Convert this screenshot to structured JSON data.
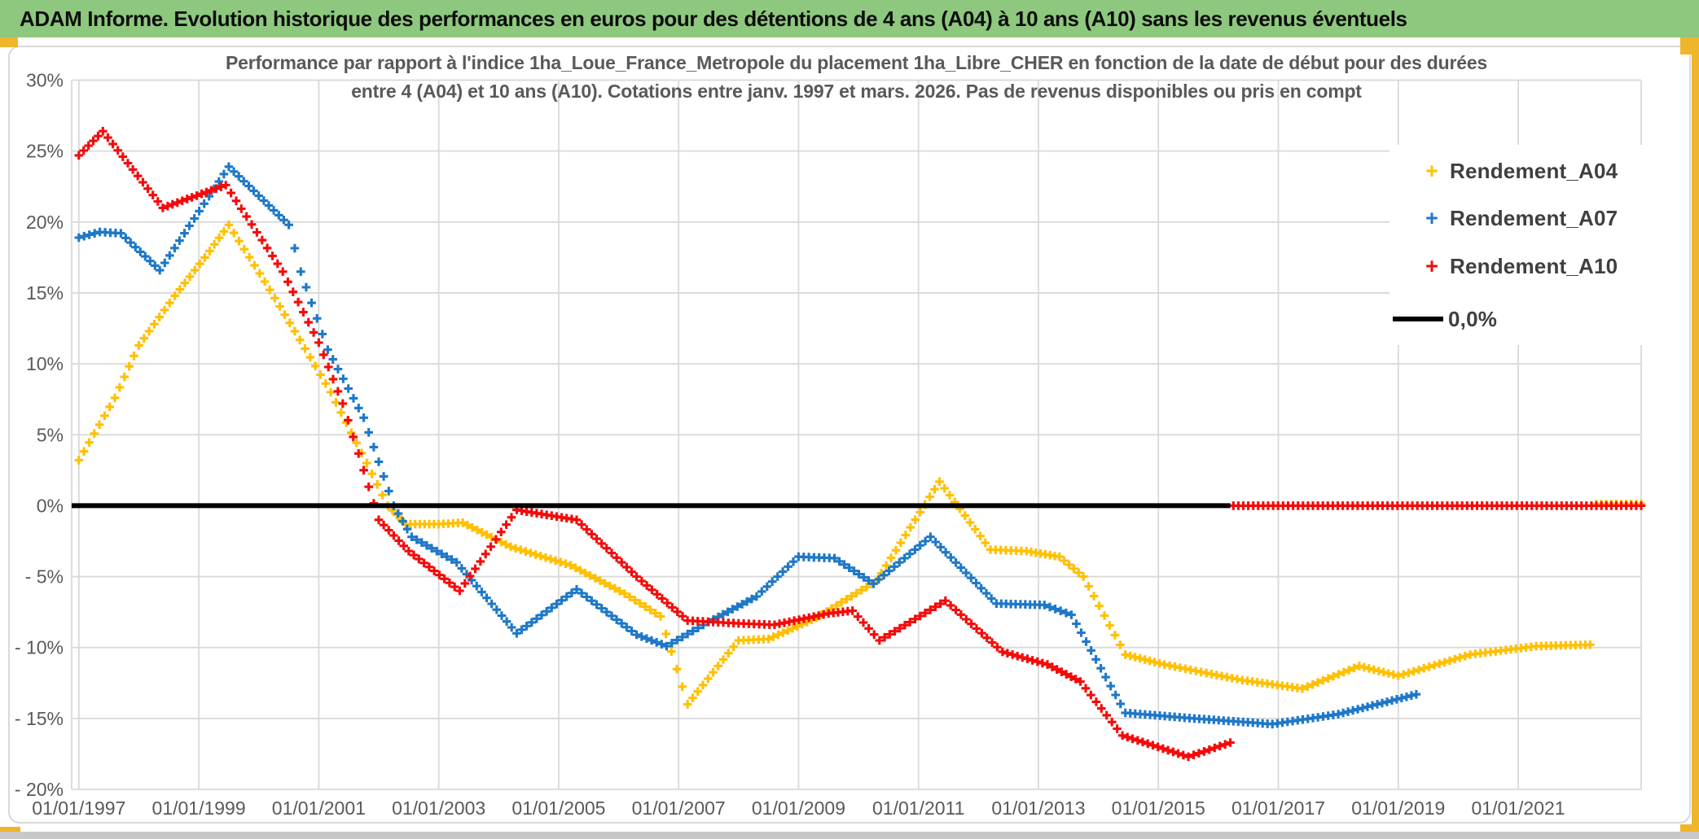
{
  "banner": {
    "title": "ADAM Informe. Evolution historique des performances en euros pour des détentions de 4 ans (A04) à 10 ans (A10) sans les revenus éventuels"
  },
  "colors": {
    "banner_green": "#8dc87e",
    "accent_yellow": "#efb62c",
    "grid": "#d9d9d9",
    "axis_text": "#595959",
    "subtitle_text": "#595959",
    "legend_text": "#3f3f3f",
    "series_a04": "#ffc000",
    "series_a07": "#1e78c8",
    "series_a10": "#f50a0a",
    "zero_line": "#000000",
    "bottom_strip": "#c8c8c8"
  },
  "chart_data": {
    "type": "line",
    "title_lines": [
      "Performance par rapport à l'indice 1ha_Loue_France_Metropole  du placement 1ha_Libre_CHER en fonction de la date de début pour des durées",
      "entre 4 (A04) et 10 ans (A10). Cotations entre janv. 1997 et mars. 2026. Pas de revenus disponibles ou pris en compt"
    ],
    "x_range": [
      1996.88,
      2023.05
    ],
    "y_range": [
      -20,
      30
    ],
    "grid": true,
    "x_axis": {
      "ticks": [
        {
          "year": 1997,
          "label": "01/01/1997"
        },
        {
          "year": 1999,
          "label": "01/01/1999"
        },
        {
          "year": 2001,
          "label": "01/01/2001"
        },
        {
          "year": 2003,
          "label": "01/01/2003"
        },
        {
          "year": 2005,
          "label": "01/01/2005"
        },
        {
          "year": 2007,
          "label": "01/01/2007"
        },
        {
          "year": 2009,
          "label": "01/01/2009"
        },
        {
          "year": 2011,
          "label": "01/01/2011"
        },
        {
          "year": 2013,
          "label": "01/01/2013"
        },
        {
          "year": 2015,
          "label": "01/01/2015"
        },
        {
          "year": 2017,
          "label": "01/01/2017"
        },
        {
          "year": 2019,
          "label": "01/01/2019"
        },
        {
          "year": 2021,
          "label": "01/01/2021"
        }
      ]
    },
    "y_axis": {
      "ticks": [
        {
          "value": 30,
          "label": "30%"
        },
        {
          "value": 25,
          "label": "25%"
        },
        {
          "value": 20,
          "label": "20%"
        },
        {
          "value": 15,
          "label": "15%"
        },
        {
          "value": 10,
          "label": "10%"
        },
        {
          "value": 5,
          "label": "5%"
        },
        {
          "value": 0,
          "label": "0%"
        },
        {
          "value": -5,
          "label": "- 5%"
        },
        {
          "value": -10,
          "label": "- 10%"
        },
        {
          "value": -15,
          "label": "- 15%"
        },
        {
          "value": -20,
          "label": "- 20%"
        }
      ]
    },
    "legend": {
      "position": "upper-right",
      "entries": [
        {
          "label": "Rendement_A04",
          "color": "#ffc000",
          "marker": "+"
        },
        {
          "label": "Rendement_A07",
          "color": "#1e78c8",
          "marker": "+"
        },
        {
          "label": "Rendement_A10",
          "color": "#f50a0a",
          "marker": "+"
        },
        {
          "label": "0,0%",
          "color": "#000000",
          "marker": "line"
        }
      ]
    },
    "series": [
      {
        "name": "Rendement_A04",
        "color": "#ffc000",
        "marker": "+",
        "segments": [
          [
            [
              1997.0,
              3.2
            ],
            [
              1997.6,
              7.6
            ],
            [
              1998.0,
              11.3
            ],
            [
              1998.6,
              14.8
            ],
            [
              1999.1,
              17.5
            ],
            [
              1999.5,
              19.8
            ],
            [
              2000.1,
              15.8
            ],
            [
              2000.6,
              12.3
            ],
            [
              2001.2,
              8.0
            ],
            [
              2001.8,
              3.0
            ],
            [
              2002.15,
              0.0
            ],
            [
              2002.45,
              -1.3
            ],
            [
              2003.0,
              -1.3
            ],
            [
              2003.4,
              -1.2
            ],
            [
              2004.2,
              -2.9
            ],
            [
              2005.2,
              -4.2
            ],
            [
              2006.1,
              -6.2
            ],
            [
              2006.7,
              -7.8
            ],
            [
              2007.15,
              -14.0
            ],
            [
              2008.0,
              -9.5
            ],
            [
              2008.5,
              -9.4
            ],
            [
              2009.3,
              -7.9
            ],
            [
              2010.3,
              -5.3
            ],
            [
              2011.35,
              1.7
            ],
            [
              2012.2,
              -3.1
            ],
            [
              2012.8,
              -3.2
            ],
            [
              2013.35,
              -3.6
            ],
            [
              2013.75,
              -5.0
            ],
            [
              2014.45,
              -10.5
            ],
            [
              2015.1,
              -11.2
            ],
            [
              2015.8,
              -11.8
            ],
            [
              2016.4,
              -12.3
            ],
            [
              2017.4,
              -12.9
            ],
            [
              2018.35,
              -11.3
            ],
            [
              2019.0,
              -12.0
            ],
            [
              2020.2,
              -10.5
            ],
            [
              2021.3,
              -9.9
            ],
            [
              2022.2,
              -9.8
            ]
          ],
          [
            [
              2022.3,
              0.12
            ],
            [
              2023.05,
              0.12
            ]
          ]
        ]
      },
      {
        "name": "Rendement_A07",
        "color": "#1e78c8",
        "marker": "+",
        "segments": [
          [
            [
              1997.0,
              18.9
            ],
            [
              1997.35,
              19.3
            ],
            [
              1997.7,
              19.2
            ],
            [
              1998.35,
              16.6
            ],
            [
              1999.5,
              23.9
            ],
            [
              2000.5,
              19.8
            ],
            [
              2000.7,
              16.5
            ],
            [
              2001.15,
              11.0
            ],
            [
              2001.75,
              6.2
            ],
            [
              2002.25,
              0.0
            ],
            [
              2002.55,
              -2.2
            ],
            [
              2003.3,
              -4.0
            ],
            [
              2004.3,
              -9.0
            ],
            [
              2005.3,
              -5.9
            ],
            [
              2006.3,
              -9.1
            ],
            [
              2006.8,
              -9.9
            ],
            [
              2007.5,
              -8.2
            ],
            [
              2008.3,
              -6.4
            ],
            [
              2009.0,
              -3.6
            ],
            [
              2009.6,
              -3.7
            ],
            [
              2010.25,
              -5.5
            ],
            [
              2011.2,
              -2.2
            ],
            [
              2012.3,
              -6.9
            ],
            [
              2013.1,
              -7.0
            ],
            [
              2013.55,
              -7.7
            ],
            [
              2014.45,
              -14.6
            ],
            [
              2015.6,
              -15.0
            ],
            [
              2016.9,
              -15.4
            ],
            [
              2018.0,
              -14.7
            ],
            [
              2019.3,
              -13.3
            ]
          ]
        ]
      },
      {
        "name": "Rendement_A10",
        "color": "#f50a0a",
        "marker": "+",
        "segments": [
          [
            [
              1997.0,
              24.7
            ],
            [
              1997.4,
              26.4
            ],
            [
              1998.4,
              21.0
            ],
            [
              1999.45,
              22.6
            ],
            [
              2000.4,
              16.5
            ],
            [
              2001.0,
              11.5
            ],
            [
              2001.4,
              7.2
            ],
            [
              2001.75,
              2.5
            ],
            [
              2002.0,
              -1.0
            ],
            [
              2002.5,
              -3.2
            ],
            [
              2003.35,
              -6.0
            ],
            [
              2004.3,
              -0.3
            ],
            [
              2005.3,
              -1.0
            ],
            [
              2006.3,
              -5.0
            ],
            [
              2007.15,
              -8.1
            ],
            [
              2008.0,
              -8.3
            ],
            [
              2008.6,
              -8.4
            ],
            [
              2009.5,
              -7.6
            ],
            [
              2009.9,
              -7.4
            ],
            [
              2010.35,
              -9.5
            ],
            [
              2011.45,
              -6.7
            ],
            [
              2012.4,
              -10.3
            ],
            [
              2013.15,
              -11.2
            ],
            [
              2013.7,
              -12.4
            ],
            [
              2014.4,
              -16.2
            ],
            [
              2015.5,
              -17.7
            ],
            [
              2016.2,
              -16.7
            ]
          ],
          [
            [
              2016.25,
              0.0
            ],
            [
              2023.05,
              0.0
            ]
          ]
        ]
      },
      {
        "name": "0,0%",
        "color": "#000000",
        "style": "solid",
        "width": 6,
        "segments": [
          [
            [
              1996.88,
              0.0
            ],
            [
              2016.2,
              0.0
            ]
          ]
        ]
      }
    ]
  }
}
